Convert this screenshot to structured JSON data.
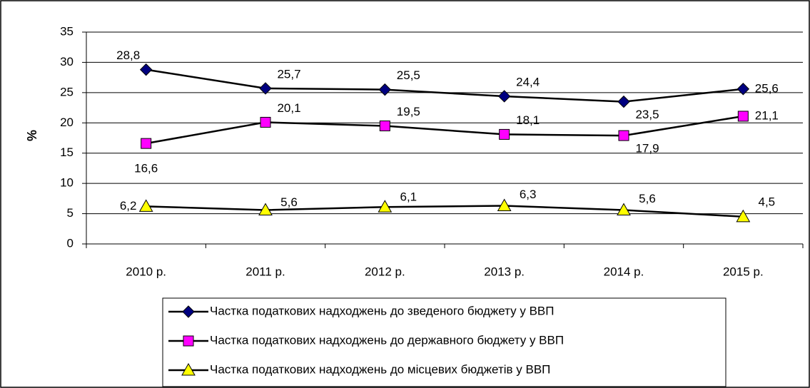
{
  "chart_data": {
    "type": "line",
    "categories": [
      "2010 р.",
      "2011 р.",
      "2012 р.",
      "2013 р.",
      "2014 р.",
      "2015 р."
    ],
    "y_label": "%",
    "ylim": [
      0,
      35
    ],
    "yticks": [
      0,
      5,
      10,
      15,
      20,
      25,
      30,
      35
    ],
    "grid": true,
    "line_color": "#000000",
    "series": [
      {
        "name": "Частка податкових надходжень до зведеного бюджету у ВВП",
        "color": "#000080",
        "marker": "diamond",
        "values": [
          28.8,
          25.7,
          25.5,
          24.4,
          23.5,
          25.6
        ],
        "value_labels": [
          "28,8",
          "25,7",
          "25,5",
          "24,4",
          "23,5",
          "25,6"
        ]
      },
      {
        "name": "Частка податкових надходжень до державного бюджету у ВВП",
        "color": "#ff00ff",
        "marker": "square",
        "values": [
          16.6,
          20.1,
          19.5,
          18.1,
          17.9,
          21.1
        ],
        "value_labels": [
          "16,6",
          "20,1",
          "19,5",
          "18,1",
          "17,9",
          "21,1"
        ]
      },
      {
        "name": "Частка податкових надходжень до місцевих бюджетів у ВВП",
        "color": "#ffff00",
        "marker": "triangle",
        "values": [
          6.2,
          5.6,
          6.1,
          6.3,
          5.6,
          4.5
        ],
        "value_labels": [
          "6,2",
          "5,6",
          "6,1",
          "6,3",
          "5,6",
          "4,5"
        ]
      }
    ]
  }
}
